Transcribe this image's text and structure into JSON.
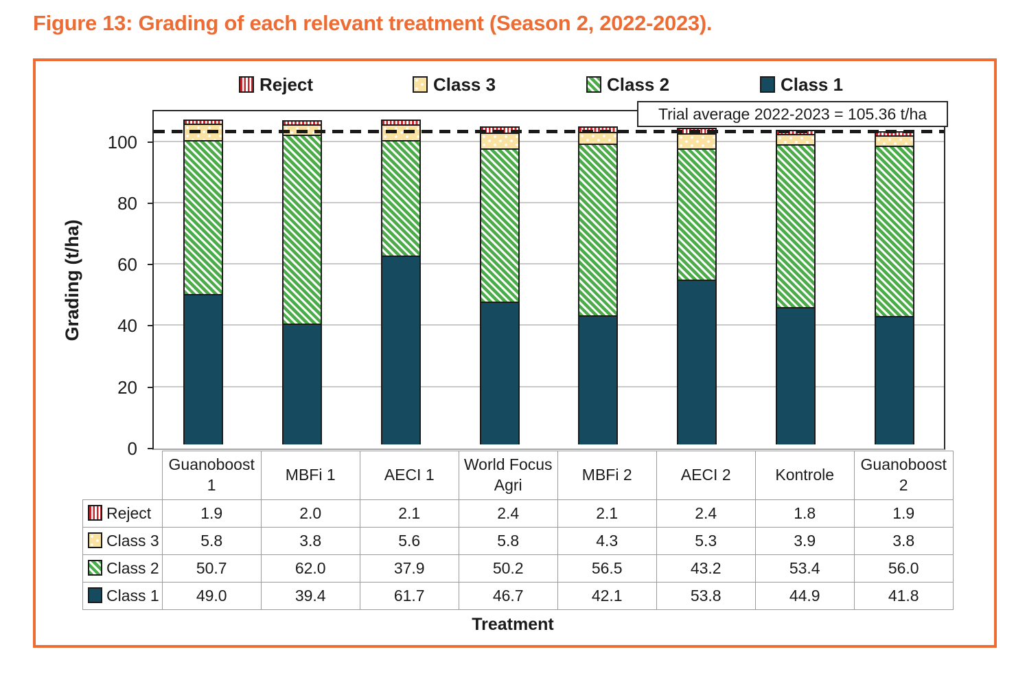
{
  "figure": {
    "title": "Figure 13: Grading of each relevant treatment (Season 2, 2022-2023).",
    "accent_color": "#ED6C33"
  },
  "chart_data": {
    "type": "bar",
    "stacked": true,
    "title": "",
    "xlabel": "Treatment",
    "ylabel": "Grading (t/ha)",
    "categories": [
      "Guanoboost 1",
      "MBFi 1",
      "AECI 1",
      "World Focus Agri",
      "MBFi 2",
      "AECI 2",
      "Kontrole",
      "Guanoboost 2"
    ],
    "series": [
      {
        "name": "Reject",
        "key": "reject",
        "color": "#C5272D",
        "pattern": "red-vertical-stripes-on-white",
        "values": [
          1.9,
          2.0,
          2.1,
          2.4,
          2.1,
          2.4,
          1.8,
          1.9
        ]
      },
      {
        "name": "Class 3",
        "key": "class3",
        "color": "#FAE3A2",
        "pattern": "cream-with-white-dots",
        "values": [
          5.8,
          3.8,
          5.6,
          5.8,
          4.3,
          5.3,
          3.9,
          3.8
        ]
      },
      {
        "name": "Class 2",
        "key": "class2",
        "color": "#4BAC49",
        "pattern": "green-diagonal-hatch",
        "values": [
          50.7,
          62.0,
          37.9,
          50.2,
          56.5,
          43.2,
          53.4,
          56.0
        ]
      },
      {
        "name": "Class 1",
        "key": "class1",
        "color": "#164A5E",
        "pattern": "solid",
        "values": [
          49.0,
          39.4,
          61.7,
          46.7,
          42.1,
          53.8,
          44.9,
          41.8
        ]
      }
    ],
    "stack_order_bottom_to_top": [
      "Class 1",
      "Class 2",
      "Class 3",
      "Reject"
    ],
    "legend_order": [
      "Reject",
      "Class 3",
      "Class 2",
      "Class 1"
    ],
    "legend_position": "top",
    "y_ticks": [
      0,
      20,
      40,
      60,
      80,
      100
    ],
    "ylim": [
      0,
      110
    ],
    "grid": "horizontal",
    "annotation": {
      "label": "Trial average 2022-2023 = 105.36 t/ha",
      "value": 105.36,
      "line_display_y": 102.8,
      "line_style": "dashed-black"
    },
    "data_table_shown": true
  }
}
